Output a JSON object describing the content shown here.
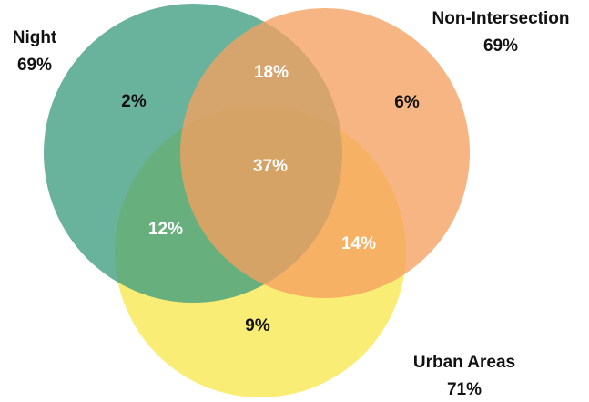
{
  "chart_data": {
    "type": "venn",
    "sets": [
      {
        "name": "Night",
        "value": 69,
        "value_label": "69%",
        "color": "#3f9e80"
      },
      {
        "name": "Non-Intersection",
        "value": 69,
        "value_label": "69%",
        "color": "#f5a060"
      },
      {
        "name": "Urban Areas",
        "value": 71,
        "value_label": "71%",
        "color": "#f8e84e"
      }
    ],
    "regions": {
      "values": [
        2,
        18,
        6,
        37,
        12,
        14,
        9
      ],
      "value_labels": [
        "2%",
        "18%",
        "6%",
        "37%",
        "12%",
        "14%",
        "9%"
      ],
      "label_colors": [
        "#111111",
        "#ffffff",
        "#111111",
        "#ffffff",
        "#ffffff",
        "#ffffff",
        "#111111"
      ]
    }
  }
}
